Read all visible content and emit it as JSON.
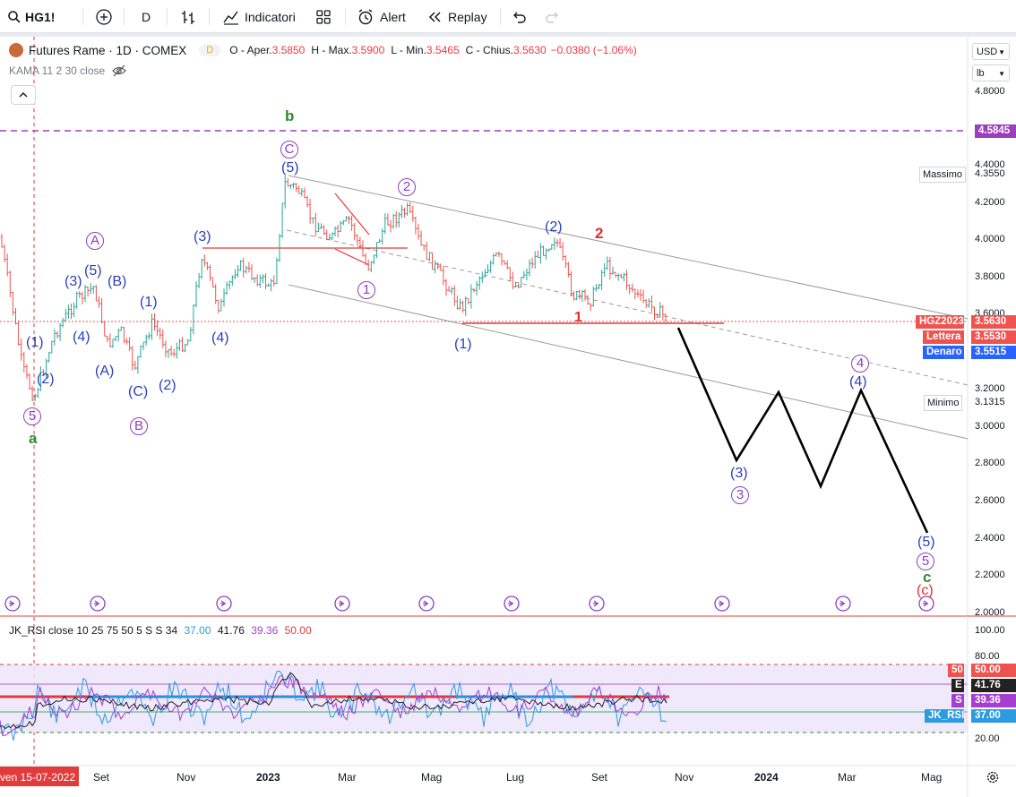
{
  "toolbar": {
    "symbol": "HG1!",
    "interval": "D",
    "indicators_label": "Indicatori",
    "alert_label": "Alert",
    "replay_label": "Replay"
  },
  "legend": {
    "title": "Futures Rame · 1D · COMEX",
    "badge": "D",
    "o_label": "O - Aper.",
    "o_val": "3.5850",
    "h_label": "H - Max.",
    "h_val": "3.5900",
    "l_label": "L - Min.",
    "l_val": "3.5465",
    "c_label": "C - Chius.",
    "c_val": "3.5630",
    "change": "−0.0380 (−1.06%)",
    "indicator": "KAMA 11 2 30 close"
  },
  "price_axis": {
    "currency": "USD",
    "unit": "lb",
    "ticks": [
      "4.8000",
      "4.4000",
      "4.2000",
      "4.0000",
      "3.8000",
      "3.6000",
      "3.2000",
      "3.0000",
      "2.8000",
      "2.6000",
      "2.4000",
      "2.2000",
      "2.0000"
    ],
    "tags": {
      "purple_level": "4.5845",
      "high_label": "Massimo",
      "high_val": "4.3550",
      "symbol_label": "HGZ2023",
      "symbol_val": "3.5630",
      "ask_label": "Lettera",
      "ask_val": "3.5530",
      "bid_label": "Denaro",
      "bid_val": "3.5515",
      "low_label": "Minimo",
      "low_val": "3.1315"
    }
  },
  "rsi": {
    "legend_name": "JK_RSI close 10 25 75 50 5 S S 34",
    "v1": "37.00",
    "v2": "41.76",
    "v3": "39.36",
    "v4": "50.00",
    "ticks": [
      "100.00",
      "80.00",
      "20.00"
    ],
    "tag50_label": "50",
    "tag50_val": "50.00",
    "tagE_label": "E",
    "tagE_val": "41.76",
    "tagS_label": "S",
    "tagS_val": "39.36",
    "tagJK_label": "JK_RSI",
    "tagJK_val": "37.00"
  },
  "time_axis": {
    "crosshair_date": "ven 15-07-2022",
    "labels": [
      "Set",
      "Nov",
      "2023",
      "Mar",
      "Mag",
      "Lug",
      "Set",
      "Nov",
      "2024",
      "Mar",
      "Mag"
    ]
  },
  "waves": {
    "b": "b",
    "a": "a",
    "c": "c",
    "C": "C",
    "A": "A",
    "B": "B",
    "one": "1",
    "two": "2",
    "three": "3",
    "four": "4",
    "five": "5",
    "p1": "(1)",
    "p2": "(2)",
    "p3": "(3)",
    "p4": "(4)",
    "p5": "(5)",
    "pA": "(A)",
    "pB": "(B)",
    "pC": "(C)",
    "pc": "(c)"
  },
  "colors": {
    "up": "#26a69a",
    "down": "#ef5350",
    "wave_blue": "#2a3fbd",
    "wave_purple": "#8e3fc0",
    "wave_green": "#2e8b2e",
    "wave_red": "#e22d2d"
  }
}
